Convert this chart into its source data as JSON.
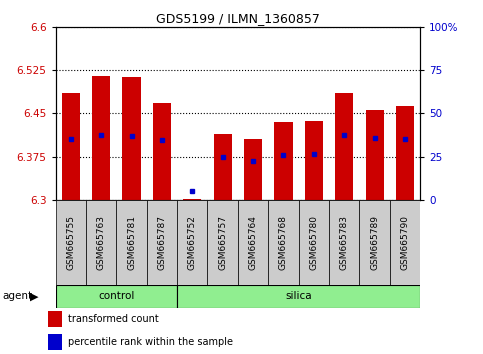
{
  "title": "GDS5199 / ILMN_1360857",
  "samples": [
    "GSM665755",
    "GSM665763",
    "GSM665781",
    "GSM665787",
    "GSM665752",
    "GSM665757",
    "GSM665764",
    "GSM665768",
    "GSM665780",
    "GSM665783",
    "GSM665789",
    "GSM665790"
  ],
  "groups": [
    "control",
    "control",
    "control",
    "control",
    "silica",
    "silica",
    "silica",
    "silica",
    "silica",
    "silica",
    "silica",
    "silica"
  ],
  "bar_tops": [
    6.485,
    6.515,
    6.513,
    6.468,
    6.302,
    6.415,
    6.405,
    6.435,
    6.437,
    6.485,
    6.455,
    6.463
  ],
  "bar_bottoms": [
    6.3,
    6.3,
    6.3,
    6.3,
    6.3,
    6.3,
    6.3,
    6.3,
    6.3,
    6.3,
    6.3,
    6.3
  ],
  "blue_marker_y": [
    6.405,
    6.413,
    6.41,
    6.403,
    6.315,
    6.375,
    6.368,
    6.378,
    6.38,
    6.413,
    6.408,
    6.405
  ],
  "ylim": [
    6.3,
    6.6
  ],
  "yticks": [
    6.3,
    6.375,
    6.45,
    6.525,
    6.6
  ],
  "right_yticks": [
    0,
    25,
    50,
    75,
    100
  ],
  "bar_color": "#cc0000",
  "blue_color": "#0000cc",
  "group_color": "#90ee90",
  "tick_bg_color": "#cccccc",
  "legend_red_label": "transformed count",
  "legend_blue_label": "percentile rank within the sample",
  "bar_width": 0.6
}
